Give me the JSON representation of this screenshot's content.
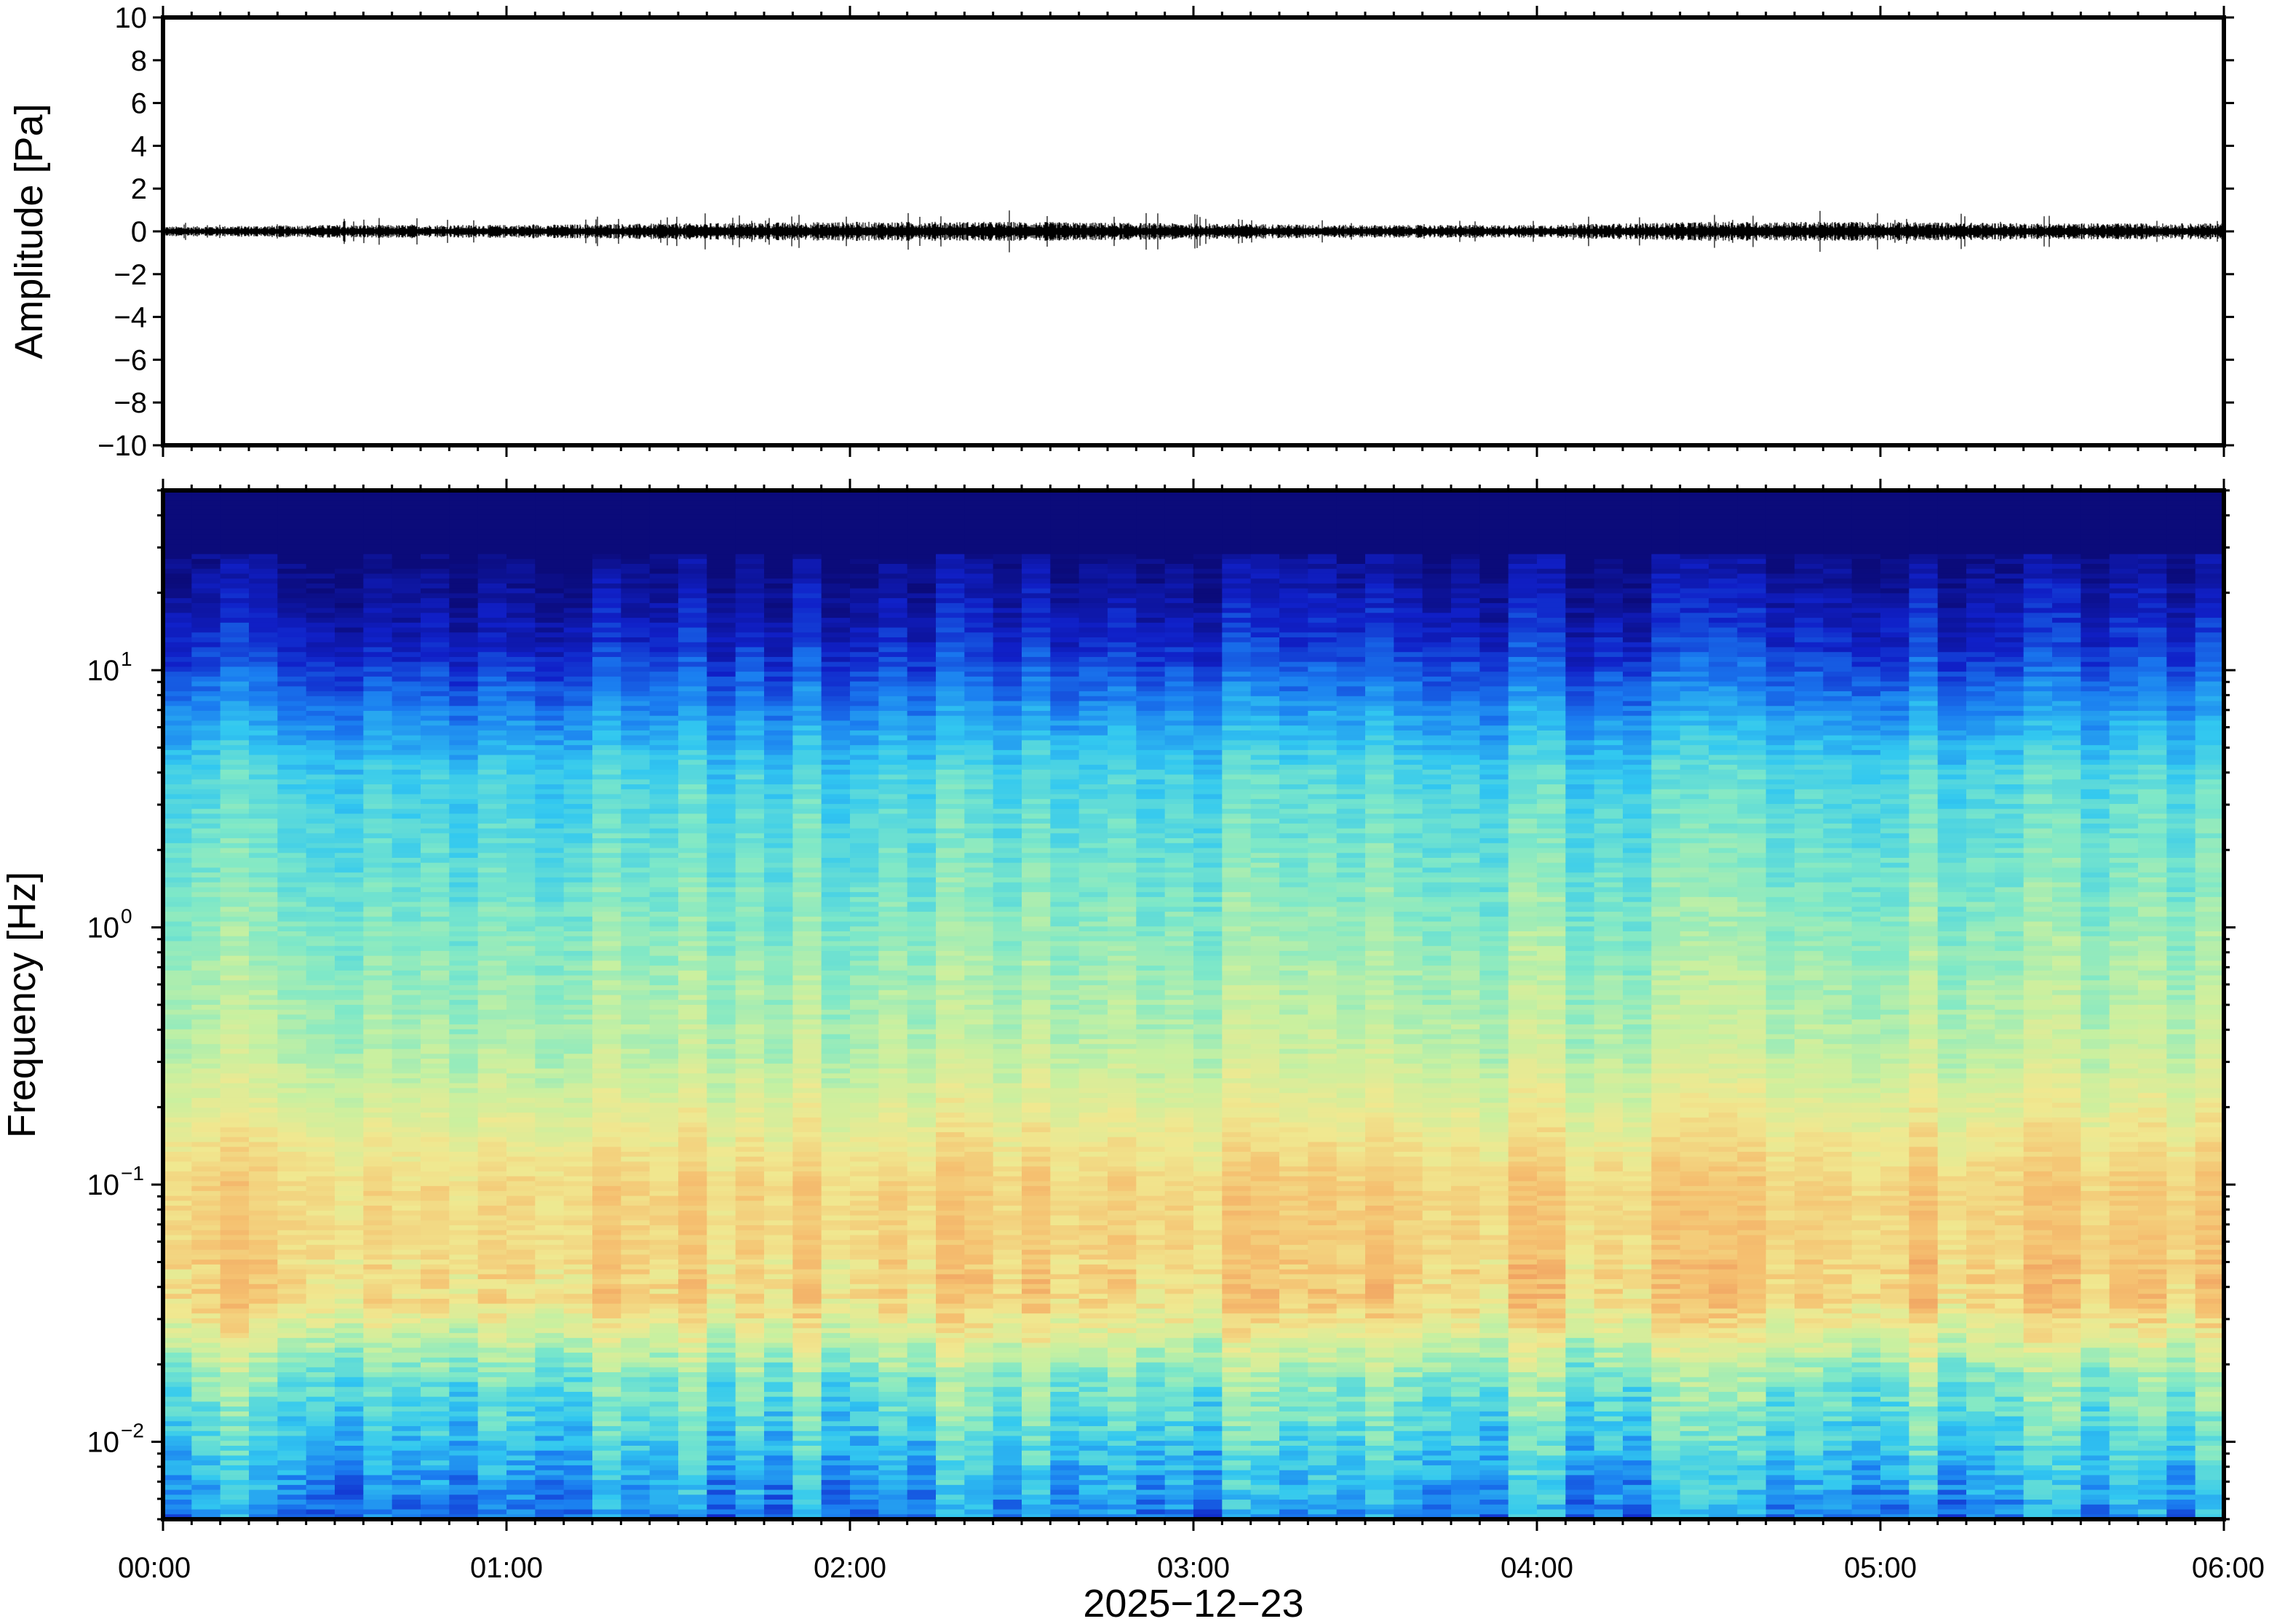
{
  "chart_data": [
    {
      "type": "line",
      "name": "waveform",
      "ylabel": "Amplitude [Pa]",
      "ylim": [
        -10,
        10
      ],
      "yticks": [
        "10",
        "8",
        "6",
        "4",
        "2",
        "0",
        "−2",
        "−4",
        "−6",
        "−8",
        "−10"
      ],
      "ytick_values": [
        10,
        8,
        6,
        4,
        2,
        0,
        -2,
        -4,
        -6,
        -8,
        -10
      ],
      "xlim_hours": [
        0,
        6
      ],
      "series": [
        {
          "description_values": "pressure trace centred on 0 Pa",
          "envelope_hours": [
            0,
            0.5,
            1,
            1.5,
            2,
            2.5,
            3,
            3.5,
            4,
            4.5,
            5,
            5.5,
            6
          ],
          "envelope_pa": [
            0.15,
            0.2,
            0.2,
            0.25,
            0.3,
            0.3,
            0.25,
            0.2,
            0.2,
            0.3,
            0.3,
            0.25,
            0.25
          ],
          "color": "#000000"
        }
      ],
      "grid": false
    },
    {
      "type": "heatmap",
      "name": "spectrogram",
      "ylabel": "Frequency [Hz]",
      "yscale": "log",
      "ylim": [
        0.005,
        50
      ],
      "yticks": [
        {
          "value": 0.01,
          "base": "10",
          "exp": "−2"
        },
        {
          "value": 0.1,
          "base": "10",
          "exp": "−1"
        },
        {
          "value": 1,
          "base": "10",
          "exp": "0"
        },
        {
          "value": 10,
          "base": "10",
          "exp": "1"
        }
      ],
      "xlabel": "2025−12−23",
      "xticks": [
        "00:00",
        "01:00",
        "02:00",
        "03:00",
        "04:00",
        "05:00",
        "06:00"
      ],
      "xlim_hours": [
        0,
        6
      ],
      "colormap": [
        "#0b0b7a",
        "#1020c8",
        "#1a7cf0",
        "#32c8f0",
        "#7ee8c8",
        "#c8f0a0",
        "#f0e890",
        "#f5c070",
        "#f0a060"
      ],
      "grid": false
    }
  ]
}
